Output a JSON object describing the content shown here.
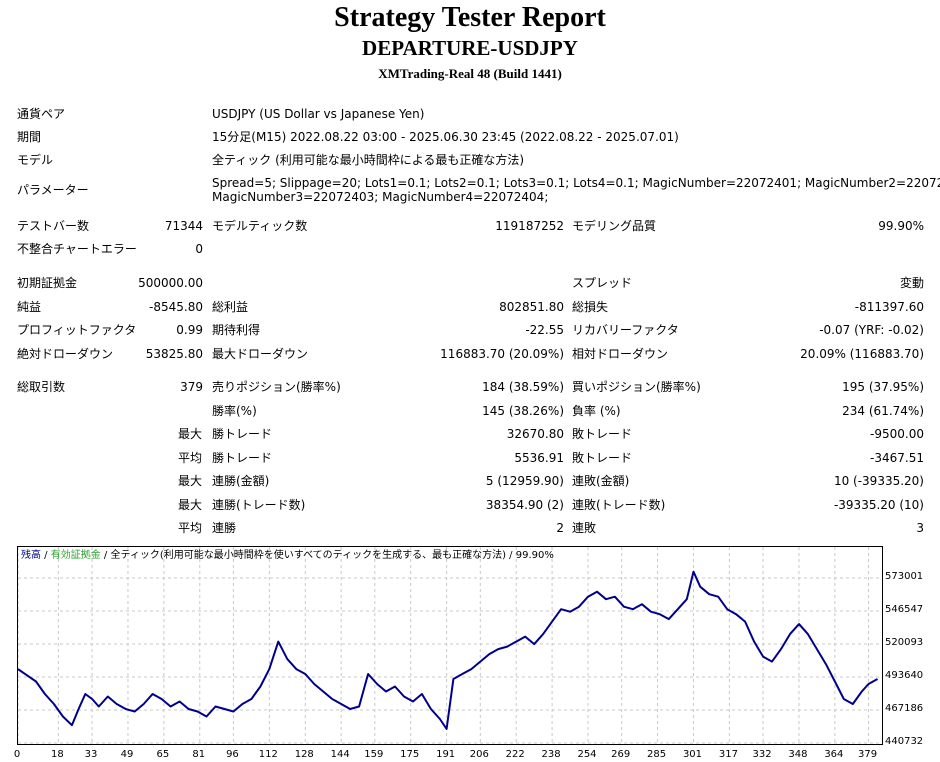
{
  "header": {
    "title": "Strategy Tester Report",
    "subtitle": "DEPARTURE-USDJPY",
    "server": "XMTrading-Real 48 (Build 1441)"
  },
  "settings": {
    "symbol_label": "通貨ペア",
    "symbol_value": "USDJPY (US Dollar vs Japanese Yen)",
    "period_label": "期間",
    "period_value": "15分足(M15) 2022.08.22 03:00 - 2025.06.30 23:45 (2022.08.22 - 2025.07.01)",
    "model_label": "モデル",
    "model_value": "全ティック (利用可能な最小時間枠による最も正確な方法)",
    "params_label": "パラメーター",
    "params_line1": "Spread=5; Slippage=20; Lots1=0.1; Lots2=0.1; Lots3=0.1; Lots4=0.1; MagicNumber=22072401; MagicNumber2=22072402;",
    "params_line2": "MagicNumber3=22072403; MagicNumber4=22072404;"
  },
  "stats": {
    "bars_label": "テストバー数",
    "bars_value": "71344",
    "ticks_label": "モデルティック数",
    "ticks_value": "119187252",
    "quality_label": "モデリング品質",
    "quality_value": "99.90%",
    "mismatch_label": "不整合チャートエラー",
    "mismatch_value": "0",
    "deposit_label": "初期証拠金",
    "deposit_value": "500000.00",
    "spread_label": "スプレッド",
    "spread_value": "変動",
    "net_label": "純益",
    "net_value": "-8545.80",
    "gross_profit_label": "総利益",
    "gross_profit_value": "802851.80",
    "gross_loss_label": "総損失",
    "gross_loss_value": "-811397.60",
    "pf_label": "プロフィットファクタ",
    "pf_value": "0.99",
    "expected_label": "期待利得",
    "expected_value": "-22.55",
    "recovery_label": "リカバリーファクタ",
    "recovery_value": "-0.07 (YRF: -0.02)",
    "abs_dd_label": "絶対ドローダウン",
    "abs_dd_value": "53825.80",
    "max_dd_label": "最大ドローダウン",
    "max_dd_value": "116883.70 (20.09%)",
    "rel_dd_label": "相対ドローダウン",
    "rel_dd_value": "20.09% (116883.70)",
    "trades_label": "総取引数",
    "trades_value": "379",
    "short_label": "売りポジション(勝率%)",
    "short_value": "184 (38.59%)",
    "long_label": "買いポジション(勝率%)",
    "long_value": "195 (37.95%)",
    "winrate_label": "勝率(%)",
    "winrate_value": "145 (38.26%)",
    "lossrate_label": "負率 (%)",
    "lossrate_value": "234 (61.74%)",
    "max_label": "最大",
    "avg_label": "平均",
    "win_trade_label": "勝トレード",
    "loss_trade_label": "敗トレード",
    "max_win_value": "32670.80",
    "max_loss_value": "-9500.00",
    "avg_win_value": "5536.91",
    "avg_loss_value": "-3467.51",
    "cons_win_amt_label": "連勝(金額)",
    "cons_win_amt_value": "5 (12959.90)",
    "cons_loss_amt_label": "連敗(金額)",
    "cons_loss_amt_value": "10 (-39335.20)",
    "cons_win_cnt_label": "連勝(トレード数)",
    "cons_win_cnt_value": "38354.90 (2)",
    "cons_loss_cnt_label": "連敗(トレード数)",
    "cons_loss_cnt_value": "-39335.20 (10)",
    "avg_cons_win_label": "連勝",
    "avg_cons_win_value": "2",
    "avg_cons_loss_label": "連敗",
    "avg_cons_loss_value": "3"
  },
  "legend": {
    "balance": "残高",
    "sep1": " / ",
    "equity": "有効証拠金",
    "sep2": " / ",
    "model": "全ティック(利用可能な最小時間枠を使いすべてのティックを生成する、最も正確な方法)",
    "sep3": " / ",
    "quality": "99.90%"
  },
  "colors": {
    "balance": "#00008b",
    "equity": "#2ca02c"
  },
  "chart_data": {
    "type": "line",
    "x_ticks": [
      "0",
      "18",
      "33",
      "49",
      "65",
      "81",
      "96",
      "112",
      "128",
      "144",
      "159",
      "175",
      "191",
      "206",
      "222",
      "238",
      "254",
      "269",
      "285",
      "301",
      "317",
      "332",
      "348",
      "364",
      "379"
    ],
    "y_ticks": [
      "573001",
      "546547",
      "520093",
      "493640",
      "467186",
      "440732"
    ],
    "ylim": [
      440732,
      585000
    ],
    "xlim": [
      0,
      385
    ],
    "series": [
      {
        "name": "残高",
        "x": [
          0,
          4,
          8,
          12,
          16,
          20,
          24,
          27,
          30,
          33,
          36,
          40,
          44,
          48,
          52,
          56,
          60,
          64,
          68,
          72,
          76,
          80,
          84,
          88,
          92,
          96,
          100,
          104,
          108,
          112,
          116,
          120,
          124,
          128,
          132,
          136,
          140,
          144,
          148,
          152,
          156,
          160,
          164,
          168,
          172,
          176,
          180,
          184,
          188,
          191,
          194,
          198,
          202,
          206,
          210,
          214,
          218,
          222,
          226,
          230,
          234,
          238,
          242,
          246,
          250,
          254,
          258,
          262,
          266,
          270,
          274,
          278,
          282,
          286,
          290,
          294,
          298,
          301,
          304,
          308,
          312,
          316,
          320,
          324,
          328,
          332,
          336,
          340,
          344,
          348,
          352,
          356,
          360,
          364,
          368,
          372,
          376,
          379,
          383
        ],
        "y": [
          500000,
          495000,
          490000,
          480000,
          472000,
          462000,
          455000,
          468000,
          480000,
          476000,
          470000,
          478000,
          472000,
          468000,
          466000,
          472000,
          480000,
          476000,
          470000,
          474000,
          468000,
          466000,
          462000,
          470000,
          468000,
          466000,
          472000,
          476000,
          486000,
          500000,
          522000,
          508000,
          500000,
          496000,
          488000,
          482000,
          476000,
          472000,
          468000,
          470000,
          496000,
          488000,
          482000,
          486000,
          478000,
          474000,
          480000,
          468000,
          460000,
          452000,
          492000,
          496000,
          500000,
          506000,
          512000,
          516000,
          518000,
          522000,
          526000,
          520000,
          528000,
          538000,
          548000,
          546000,
          550000,
          558000,
          562000,
          556000,
          558000,
          550000,
          548000,
          552000,
          546000,
          544000,
          540000,
          548000,
          556000,
          578000,
          566000,
          560000,
          558000,
          548000,
          544000,
          538000,
          522000,
          510000,
          506000,
          516000,
          528000,
          536000,
          528000,
          516000,
          504000,
          490000,
          476000,
          472000,
          482000,
          488000,
          492000
        ]
      }
    ]
  }
}
